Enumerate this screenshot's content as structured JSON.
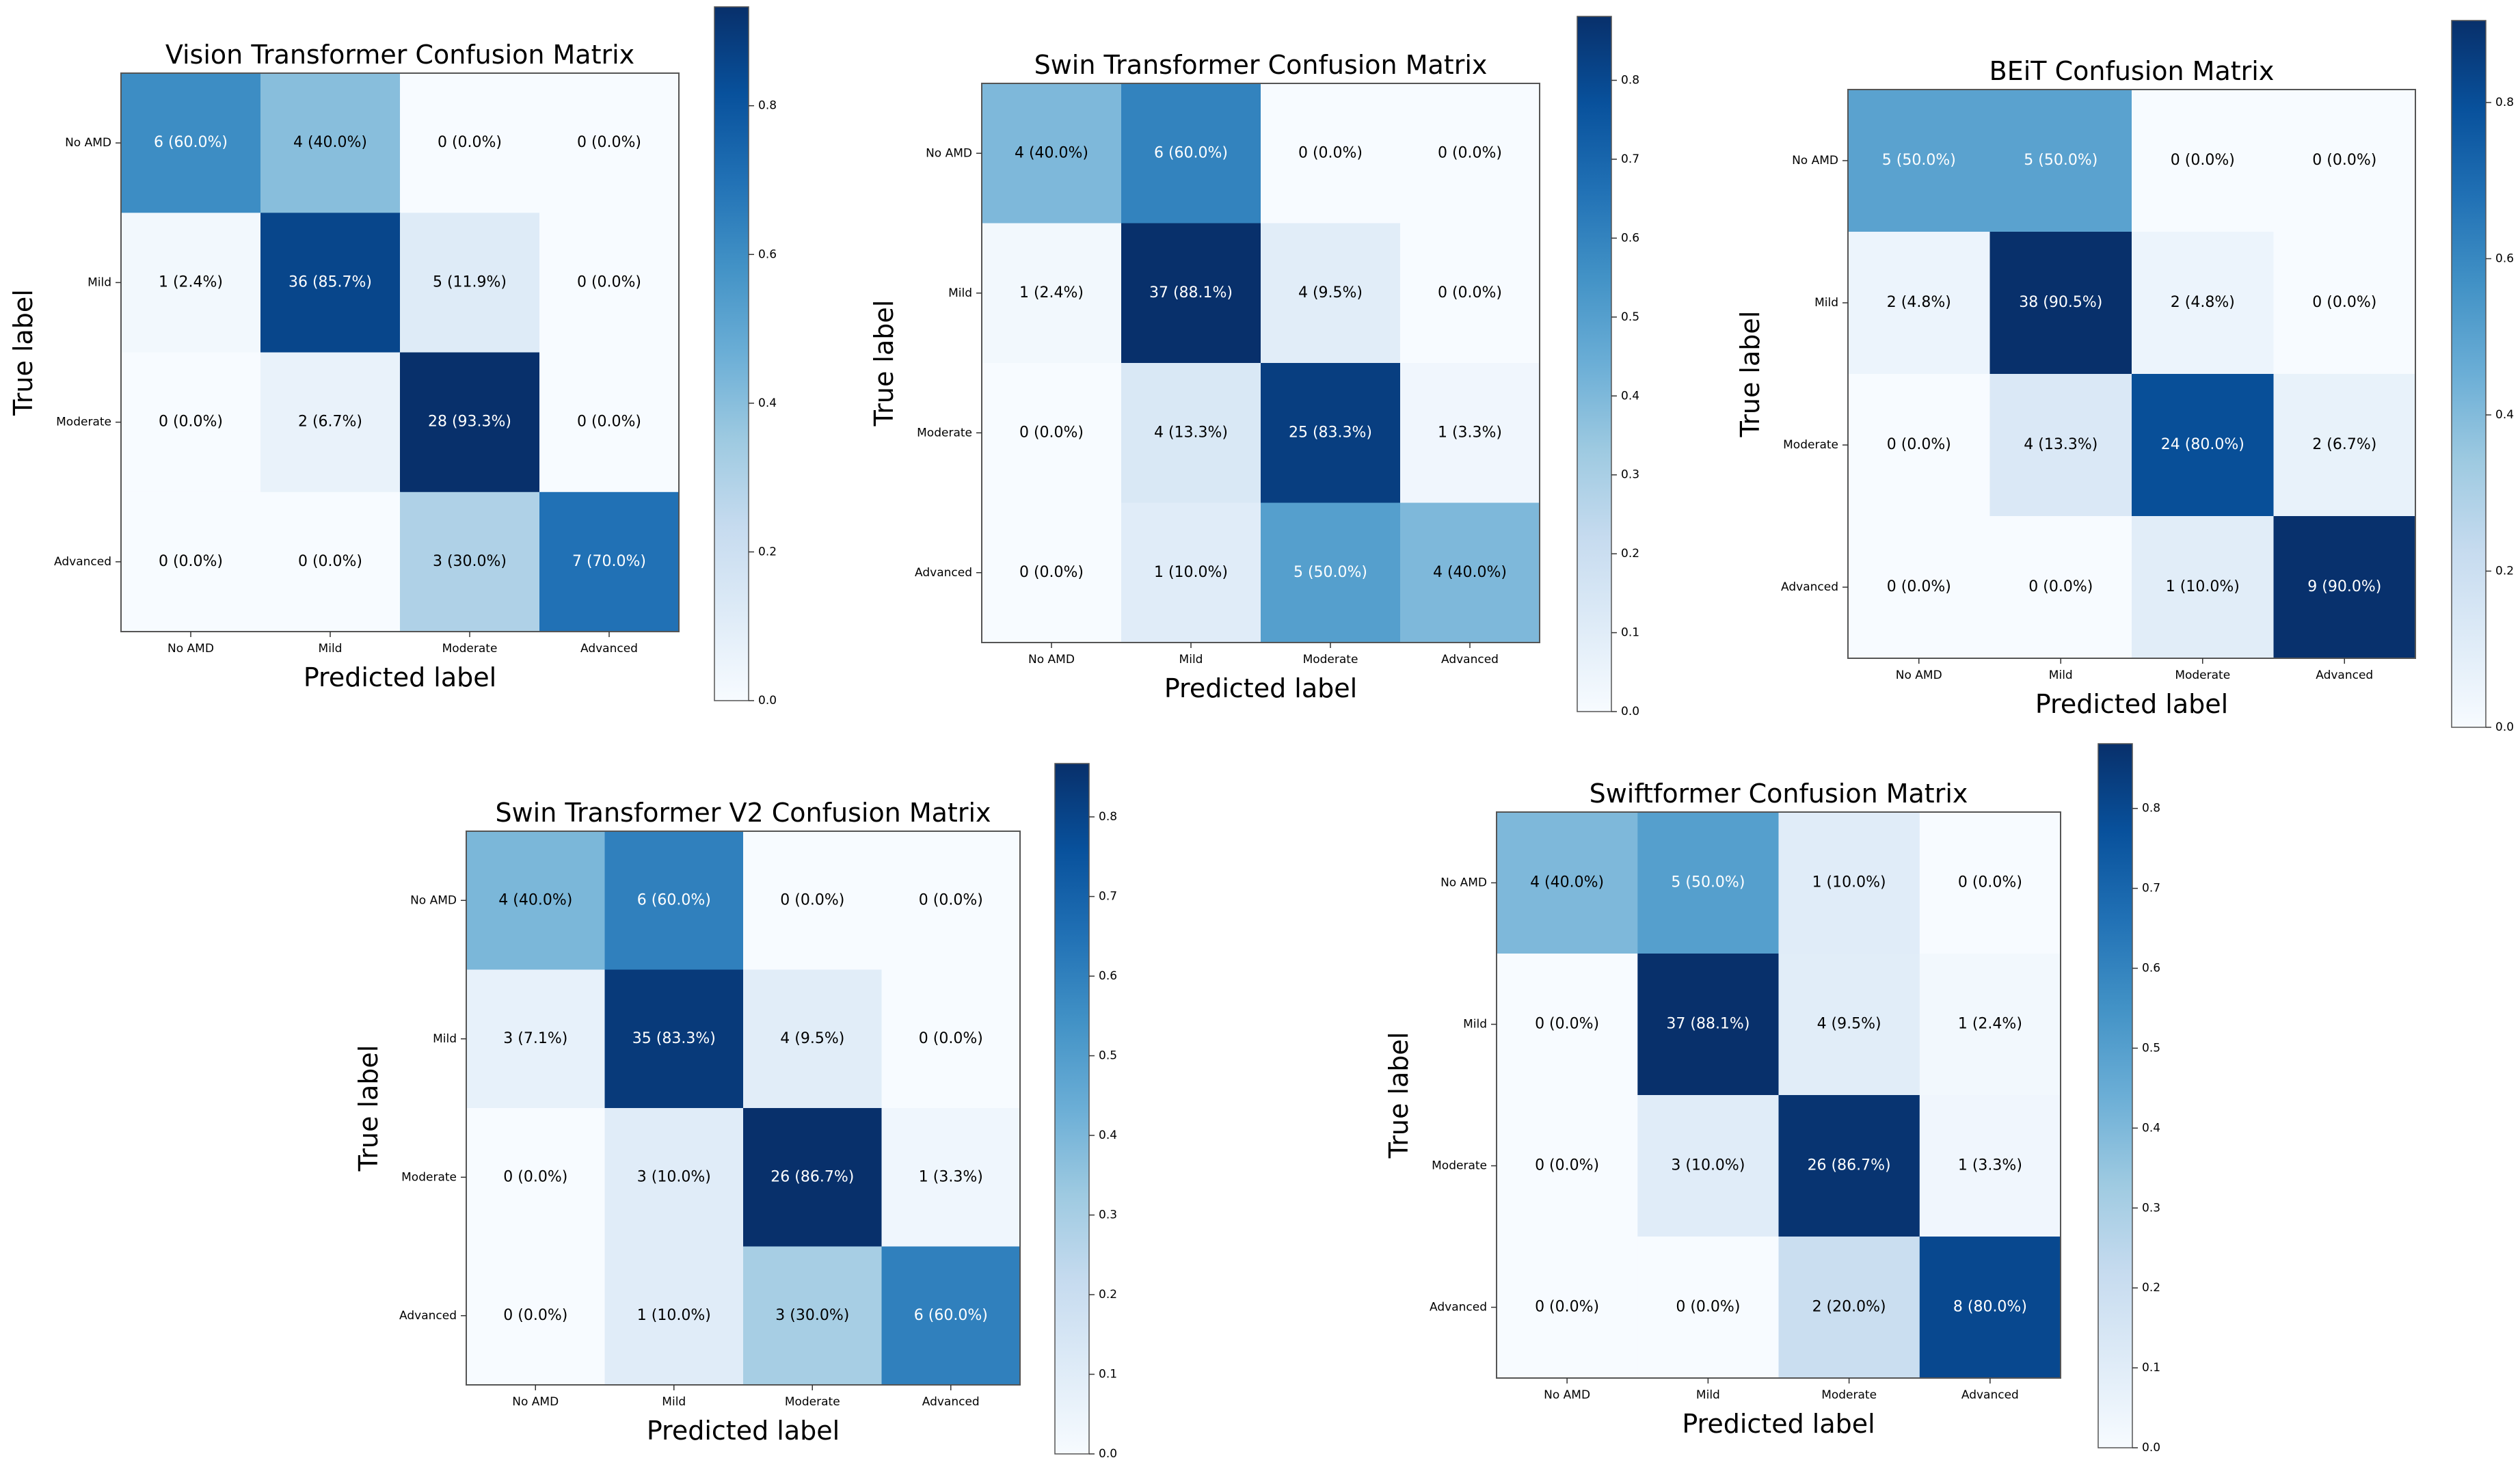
{
  "class_labels": [
    "No AMD",
    "Mild",
    "Moderate",
    "Advanced"
  ],
  "colors": {
    "scale": [
      "#f7fbff",
      "#deebf7",
      "#c6dbef",
      "#9ecae1",
      "#6baed6",
      "#4292c6",
      "#2171b5",
      "#08519c",
      "#08306b"
    ],
    "text_dark": "#000000",
    "text_light": "#ffffff",
    "frame": "#555555"
  },
  "chart_data": [
    {
      "type": "heatmap",
      "title": "Vision Transformer Confusion Matrix",
      "xlabel": "Predicted label",
      "ylabel": "True label",
      "x_categories": [
        "No AMD",
        "Mild",
        "Moderate",
        "Advanced"
      ],
      "y_categories": [
        "No AMD",
        "Mild",
        "Moderate",
        "Advanced"
      ],
      "counts": [
        [
          6,
          4,
          0,
          0
        ],
        [
          1,
          36,
          5,
          0
        ],
        [
          0,
          2,
          28,
          0
        ],
        [
          0,
          0,
          3,
          7
        ]
      ],
      "cell_labels": [
        [
          "6 (60.0%)",
          "4 (40.0%)",
          "0 (0.0%)",
          "0 (0.0%)"
        ],
        [
          "1 (2.4%)",
          "36 (85.7%)",
          "5 (11.9%)",
          "0 (0.0%)"
        ],
        [
          "0 (0.0%)",
          "2 (6.7%)",
          "28 (93.3%)",
          "0 (0.0%)"
        ],
        [
          "0 (0.0%)",
          "0 (0.0%)",
          "3 (30.0%)",
          "7 (70.0%)"
        ]
      ],
      "fractions": [
        [
          0.6,
          0.4,
          0,
          0
        ],
        [
          0.024,
          0.857,
          0.119,
          0
        ],
        [
          0,
          0.067,
          0.933,
          0
        ],
        [
          0,
          0,
          0.3,
          0.7
        ]
      ],
      "colorbar": {
        "min": 0,
        "max": 0.933,
        "ticks": [
          0.0,
          0.2,
          0.4,
          0.6,
          0.8
        ],
        "tick_labels": [
          "0.0",
          "0.2",
          "0.4",
          "0.6",
          "0.8"
        ]
      }
    },
    {
      "type": "heatmap",
      "title": "Swin Transformer Confusion Matrix",
      "xlabel": "Predicted label",
      "ylabel": "True label",
      "x_categories": [
        "No AMD",
        "Mild",
        "Moderate",
        "Advanced"
      ],
      "y_categories": [
        "No AMD",
        "Mild",
        "Moderate",
        "Advanced"
      ],
      "counts": [
        [
          4,
          6,
          0,
          0
        ],
        [
          1,
          37,
          4,
          0
        ],
        [
          0,
          4,
          25,
          1
        ],
        [
          0,
          1,
          5,
          4
        ]
      ],
      "cell_labels": [
        [
          "4 (40.0%)",
          "6 (60.0%)",
          "0 (0.0%)",
          "0 (0.0%)"
        ],
        [
          "1 (2.4%)",
          "37 (88.1%)",
          "4 (9.5%)",
          "0 (0.0%)"
        ],
        [
          "0 (0.0%)",
          "4 (13.3%)",
          "25 (83.3%)",
          "1 (3.3%)"
        ],
        [
          "0 (0.0%)",
          "1 (10.0%)",
          "5 (50.0%)",
          "4 (40.0%)"
        ]
      ],
      "fractions": [
        [
          0.4,
          0.6,
          0,
          0
        ],
        [
          0.024,
          0.881,
          0.095,
          0
        ],
        [
          0,
          0.133,
          0.833,
          0.033
        ],
        [
          0,
          0.1,
          0.5,
          0.4
        ]
      ],
      "colorbar": {
        "min": 0,
        "max": 0.881,
        "ticks": [
          0.0,
          0.1,
          0.2,
          0.3,
          0.4,
          0.5,
          0.6,
          0.7,
          0.8
        ],
        "tick_labels": [
          "0.0",
          "0.1",
          "0.2",
          "0.3",
          "0.4",
          "0.5",
          "0.6",
          "0.7",
          "0.8"
        ]
      }
    },
    {
      "type": "heatmap",
      "title": "BEiT Confusion Matrix",
      "xlabel": "Predicted label",
      "ylabel": "True label",
      "x_categories": [
        "No AMD",
        "Mild",
        "Moderate",
        "Advanced"
      ],
      "y_categories": [
        "No AMD",
        "Mild",
        "Moderate",
        "Advanced"
      ],
      "counts": [
        [
          5,
          5,
          0,
          0
        ],
        [
          2,
          38,
          2,
          0
        ],
        [
          0,
          4,
          24,
          2
        ],
        [
          0,
          0,
          1,
          9
        ]
      ],
      "cell_labels": [
        [
          "5 (50.0%)",
          "5 (50.0%)",
          "0 (0.0%)",
          "0 (0.0%)"
        ],
        [
          "2 (4.8%)",
          "38 (90.5%)",
          "2 (4.8%)",
          "0 (0.0%)"
        ],
        [
          "0 (0.0%)",
          "4 (13.3%)",
          "24 (80.0%)",
          "2 (6.7%)"
        ],
        [
          "0 (0.0%)",
          "0 (0.0%)",
          "1 (10.0%)",
          "9 (90.0%)"
        ]
      ],
      "fractions": [
        [
          0.5,
          0.5,
          0,
          0
        ],
        [
          0.048,
          0.905,
          0.048,
          0
        ],
        [
          0,
          0.133,
          0.8,
          0.067
        ],
        [
          0,
          0,
          0.1,
          0.9
        ]
      ],
      "colorbar": {
        "min": 0,
        "max": 0.905,
        "ticks": [
          0.0,
          0.2,
          0.4,
          0.6,
          0.8
        ],
        "tick_labels": [
          "0.0",
          "0.2",
          "0.4",
          "0.6",
          "0.8"
        ]
      }
    },
    {
      "type": "heatmap",
      "title": "Swin Transformer V2 Confusion Matrix",
      "xlabel": "Predicted label",
      "ylabel": "True label",
      "x_categories": [
        "No AMD",
        "Mild",
        "Moderate",
        "Advanced"
      ],
      "y_categories": [
        "No AMD",
        "Mild",
        "Moderate",
        "Advanced"
      ],
      "counts": [
        [
          4,
          6,
          0,
          0
        ],
        [
          3,
          35,
          4,
          0
        ],
        [
          0,
          3,
          26,
          1
        ],
        [
          0,
          1,
          3,
          6
        ]
      ],
      "cell_labels": [
        [
          "4 (40.0%)",
          "6 (60.0%)",
          "0 (0.0%)",
          "0 (0.0%)"
        ],
        [
          "3 (7.1%)",
          "35 (83.3%)",
          "4 (9.5%)",
          "0 (0.0%)"
        ],
        [
          "0 (0.0%)",
          "3 (10.0%)",
          "26 (86.7%)",
          "1 (3.3%)"
        ],
        [
          "0 (0.0%)",
          "1 (10.0%)",
          "3 (30.0%)",
          "6 (60.0%)"
        ]
      ],
      "fractions": [
        [
          0.4,
          0.6,
          0,
          0
        ],
        [
          0.071,
          0.833,
          0.095,
          0
        ],
        [
          0,
          0.1,
          0.867,
          0.033
        ],
        [
          0,
          0.1,
          0.3,
          0.6
        ]
      ],
      "colorbar": {
        "min": 0,
        "max": 0.867,
        "ticks": [
          0.0,
          0.1,
          0.2,
          0.3,
          0.4,
          0.5,
          0.6,
          0.7,
          0.8
        ],
        "tick_labels": [
          "0.0",
          "0.1",
          "0.2",
          "0.3",
          "0.4",
          "0.5",
          "0.6",
          "0.7",
          "0.8"
        ]
      }
    },
    {
      "type": "heatmap",
      "title": "Swiftformer Confusion Matrix",
      "xlabel": "Predicted label",
      "ylabel": "True label",
      "x_categories": [
        "No AMD",
        "Mild",
        "Moderate",
        "Advanced"
      ],
      "y_categories": [
        "No AMD",
        "Mild",
        "Moderate",
        "Advanced"
      ],
      "counts": [
        [
          4,
          5,
          1,
          0
        ],
        [
          0,
          37,
          4,
          1
        ],
        [
          0,
          3,
          26,
          1
        ],
        [
          0,
          0,
          2,
          8
        ]
      ],
      "cell_labels": [
        [
          "4 (40.0%)",
          "5 (50.0%)",
          "1 (10.0%)",
          "0 (0.0%)"
        ],
        [
          "0 (0.0%)",
          "37 (88.1%)",
          "4 (9.5%)",
          "1 (2.4%)"
        ],
        [
          "0 (0.0%)",
          "3 (10.0%)",
          "26 (86.7%)",
          "1 (3.3%)"
        ],
        [
          "0 (0.0%)",
          "0 (0.0%)",
          "2 (20.0%)",
          "8 (80.0%)"
        ]
      ],
      "fractions": [
        [
          0.4,
          0.5,
          0.1,
          0
        ],
        [
          0,
          0.881,
          0.095,
          0.024
        ],
        [
          0,
          0.1,
          0.867,
          0.033
        ],
        [
          0,
          0,
          0.2,
          0.8
        ]
      ],
      "colorbar": {
        "min": 0,
        "max": 0.881,
        "ticks": [
          0.0,
          0.1,
          0.2,
          0.3,
          0.4,
          0.5,
          0.6,
          0.7,
          0.8
        ],
        "tick_labels": [
          "0.0",
          "0.1",
          "0.2",
          "0.3",
          "0.4",
          "0.5",
          "0.6",
          "0.7",
          "0.8"
        ]
      }
    }
  ]
}
